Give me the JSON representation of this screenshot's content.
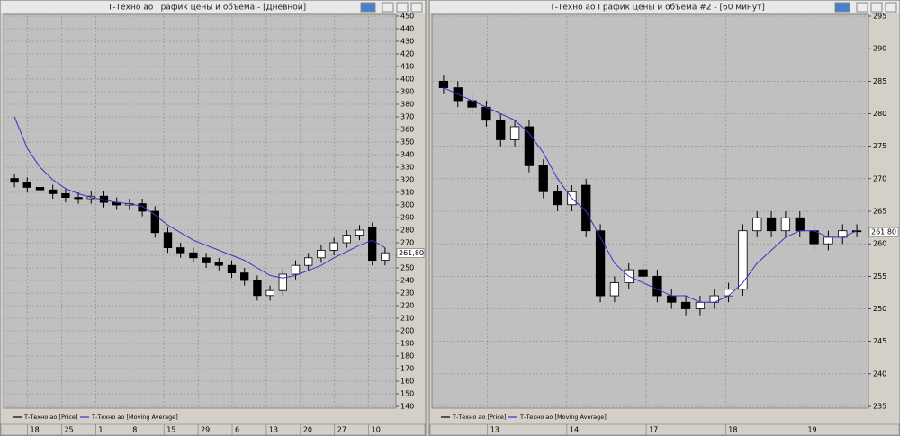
{
  "chart_data": [
    {
      "type": "candlestick",
      "title": "Т-Техно ао График цены и объема - [Дневной]",
      "date_labels": [
        "18",
        "25",
        "1",
        "8",
        "15",
        "29",
        "6",
        "13",
        "20",
        "27",
        "10"
      ],
      "ylim": [
        140,
        450
      ],
      "yticks": [
        140,
        150,
        160,
        170,
        180,
        190,
        200,
        210,
        220,
        230,
        240,
        250,
        260,
        270,
        280,
        290,
        300,
        310,
        320,
        330,
        340,
        350,
        360,
        370,
        380,
        390,
        400,
        410,
        420,
        430,
        440,
        450
      ],
      "grid": true,
      "last_price": {
        "value": 261.8,
        "label": "261,80"
      },
      "series": [
        {
          "name": "Т-Техно ао [Price]",
          "color": "#000000",
          "open": [
            321,
            318,
            314,
            312,
            309,
            306,
            305,
            307,
            302,
            300,
            301,
            295,
            278,
            266,
            262,
            258,
            254,
            252,
            246,
            240,
            228,
            232,
            245,
            252,
            258,
            264,
            270,
            276,
            282,
            256
          ],
          "high": [
            325,
            322,
            318,
            316,
            313,
            310,
            311,
            311,
            306,
            305,
            305,
            299,
            282,
            270,
            266,
            262,
            258,
            256,
            250,
            244,
            236,
            249,
            256,
            262,
            268,
            274,
            280,
            284,
            286,
            266
          ],
          "low": [
            314,
            310,
            308,
            305,
            302,
            301,
            301,
            298,
            296,
            296,
            291,
            274,
            262,
            258,
            254,
            250,
            248,
            242,
            236,
            224,
            224,
            228,
            241,
            248,
            254,
            260,
            266,
            272,
            252,
            252
          ],
          "close": [
            318,
            314,
            312,
            309,
            306,
            305,
            307,
            302,
            300,
            301,
            295,
            278,
            266,
            262,
            258,
            254,
            252,
            246,
            240,
            228,
            232,
            245,
            252,
            258,
            264,
            270,
            276,
            280,
            256,
            262
          ]
        },
        {
          "name": "Т-Техно ао [Moving Average]",
          "color": "#3333cc",
          "values": [
            370,
            345,
            330,
            320,
            313,
            309,
            306,
            304,
            302,
            301,
            299,
            292,
            284,
            278,
            272,
            268,
            264,
            260,
            256,
            250,
            244,
            242,
            244,
            248,
            252,
            258,
            263,
            268,
            272,
            266
          ]
        }
      ]
    },
    {
      "type": "candlestick",
      "title": "Т-Техно ао График цены и объема #2 - [60 минут]",
      "date_labels": [
        "13",
        "14",
        "17",
        "18",
        "19"
      ],
      "ylim": [
        235,
        295
      ],
      "yticks": [
        235,
        240,
        245,
        250,
        255,
        260,
        265,
        270,
        275,
        280,
        285,
        290,
        295
      ],
      "grid": true,
      "last_price": {
        "value": 261.8,
        "label": "261,80"
      },
      "series": [
        {
          "name": "Т-Техно ао [Price]",
          "color": "#000000",
          "open": [
            285,
            284,
            282,
            281,
            279,
            276,
            278,
            272,
            268,
            266,
            269,
            262,
            252,
            254,
            256,
            255,
            252,
            251,
            250,
            251,
            252,
            253,
            262,
            264,
            262,
            264,
            262,
            260,
            261,
            262
          ],
          "high": [
            286,
            285,
            283,
            282,
            280,
            279,
            279,
            273,
            269,
            269,
            270,
            263,
            255,
            257,
            257,
            256,
            253,
            252,
            252,
            253,
            254,
            263,
            265,
            265,
            265,
            265,
            263,
            262,
            263,
            263
          ],
          "low": [
            283,
            281,
            280,
            278,
            275,
            275,
            271,
            267,
            265,
            265,
            261,
            251,
            251,
            253,
            254,
            251,
            250,
            249,
            249,
            250,
            251,
            252,
            261,
            261,
            261,
            261,
            259,
            259,
            260,
            261
          ],
          "close": [
            284,
            282,
            281,
            279,
            276,
            278,
            272,
            268,
            266,
            268,
            262,
            252,
            254,
            256,
            255,
            252,
            251,
            250,
            251,
            252,
            253,
            262,
            264,
            262,
            264,
            262,
            260,
            261,
            262,
            262
          ]
        },
        {
          "name": "Т-Техно ао [Moving Average]",
          "color": "#3333cc",
          "values": [
            284,
            283,
            282,
            281,
            280,
            279,
            277,
            274,
            270,
            267,
            265,
            261,
            257,
            255,
            254,
            253,
            252,
            252,
            251,
            251,
            252,
            254,
            257,
            259,
            261,
            262,
            262,
            261,
            261,
            262
          ]
        }
      ]
    }
  ]
}
